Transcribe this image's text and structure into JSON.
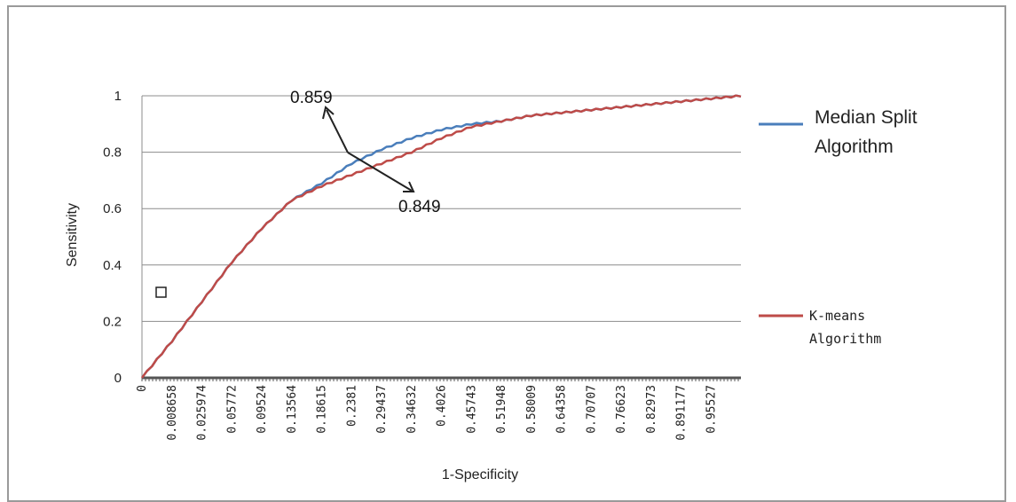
{
  "chart_data": {
    "type": "line",
    "xlabel": "1-Specificity",
    "ylabel": "Sensitivity",
    "ylim": [
      0,
      1
    ],
    "yticks": [
      "0",
      "0.2",
      "0.4",
      "0.6",
      "0.8",
      "1"
    ],
    "xticks": [
      "0",
      "0.008658",
      "0.025974",
      "0.05772",
      "0.09524",
      "0.13564",
      "0.18615",
      "0.2381",
      "0.29437",
      "0.34632",
      "0.4026",
      "0.45743",
      "0.51948",
      "0.58009",
      "0.64358",
      "0.70707",
      "0.76623",
      "0.82973",
      "0.891177",
      "0.95527"
    ],
    "grid": "horizontal",
    "legend_position": "right",
    "series": [
      {
        "name": "Median Split Algorithm",
        "color": "#4a7ebb",
        "x": [
          0.0,
          0.008658,
          0.025974,
          0.05772,
          0.09524,
          0.13564,
          0.18615,
          0.2381,
          0.29437,
          0.34632,
          0.4026,
          0.45743,
          0.51948,
          0.58009,
          0.64358,
          0.70707,
          0.76623,
          0.82973,
          0.891177,
          0.95527,
          1.0
        ],
        "values": [
          0.0,
          0.13,
          0.27,
          0.41,
          0.53,
          0.63,
          0.69,
          0.76,
          0.81,
          0.85,
          0.88,
          0.9,
          0.91,
          0.93,
          0.94,
          0.95,
          0.96,
          0.97,
          0.98,
          0.99,
          1.0
        ]
      },
      {
        "name": "K-means Algorithm",
        "color": "#be4b48",
        "x": [
          0.0,
          0.008658,
          0.025974,
          0.05772,
          0.09524,
          0.13564,
          0.18615,
          0.2381,
          0.29437,
          0.34632,
          0.4026,
          0.45743,
          0.51948,
          0.58009,
          0.64358,
          0.70707,
          0.76623,
          0.82973,
          0.891177,
          0.95527,
          1.0
        ],
        "values": [
          0.0,
          0.13,
          0.27,
          0.41,
          0.53,
          0.63,
          0.68,
          0.72,
          0.76,
          0.8,
          0.85,
          0.89,
          0.91,
          0.93,
          0.94,
          0.95,
          0.96,
          0.97,
          0.98,
          0.99,
          1.0
        ]
      }
    ],
    "annotations": [
      {
        "text": "0.859",
        "series": "Median Split Algorithm"
      },
      {
        "text": "0.849",
        "series": "K-means Algorithm"
      }
    ]
  },
  "legend": {
    "median_line1": "Median Split",
    "median_line2": "Algorithm",
    "kmeans_line1": "K-means",
    "kmeans_line2": "Algorithm"
  },
  "annotations": {
    "median_value": "0.859",
    "kmeans_value": "0.849"
  }
}
